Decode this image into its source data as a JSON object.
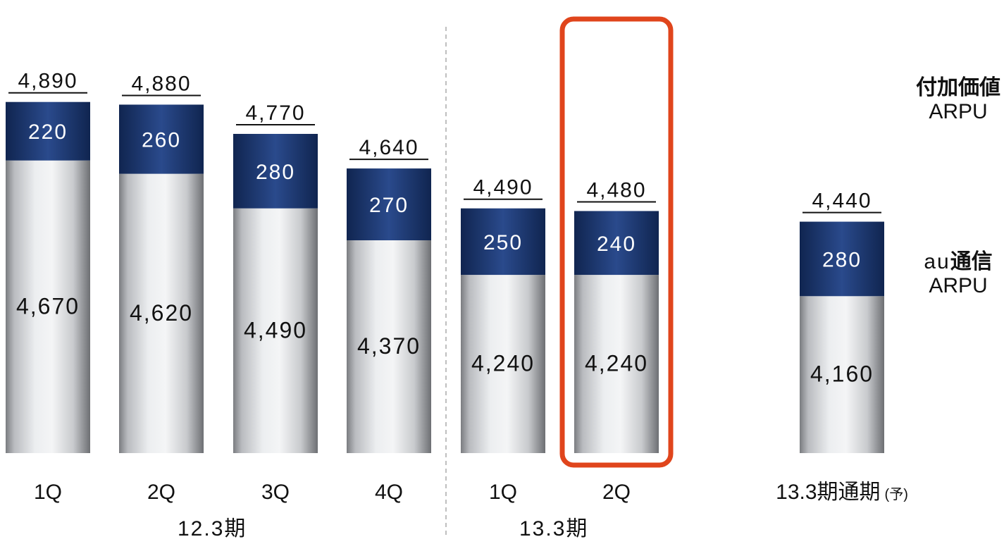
{
  "chart_data": {
    "type": "bar",
    "stacked": true,
    "categories": [
      "1Q",
      "2Q",
      "3Q",
      "4Q",
      "1Q",
      "2Q",
      "13.3期通期"
    ],
    "category_suffix": [
      "",
      "",
      "",
      "",
      "",
      "",
      "(予)"
    ],
    "groups": [
      {
        "label": "12.3期",
        "indices": [
          0,
          1,
          2,
          3
        ]
      },
      {
        "label": "13.3期",
        "indices": [
          4,
          5
        ]
      }
    ],
    "series": [
      {
        "key": "au",
        "values": [
          4670,
          4620,
          4490,
          4370,
          4240,
          4240,
          4160
        ],
        "labels": [
          "4,670",
          "4,620",
          "4,490",
          "4,370",
          "4,240",
          "4,240",
          "4,160"
        ]
      },
      {
        "key": "value_added",
        "values": [
          220,
          260,
          280,
          270,
          250,
          240,
          280
        ],
        "labels": [
          "220",
          "260",
          "280",
          "270",
          "250",
          "240",
          "280"
        ]
      }
    ],
    "totals": [
      4890,
      4880,
      4770,
      4640,
      4490,
      4480,
      4440
    ],
    "total_labels": [
      "4,890",
      "4,880",
      "4,770",
      "4,640",
      "4,490",
      "4,480",
      "4,440"
    ],
    "highlighted_index": 5,
    "divider_after_index": 3,
    "series_labels": {
      "value_added": {
        "line1": "付加価値",
        "line2": "ARPU"
      },
      "au": {
        "line1_prefix": "au",
        "line1_bold": "通信",
        "line2": "ARPU"
      }
    },
    "colors": {
      "top_segment": "#1f3d7a",
      "bar_body": "#d8dadd",
      "highlight_border": "#e0451c",
      "divider": "#aaaaaa"
    }
  }
}
